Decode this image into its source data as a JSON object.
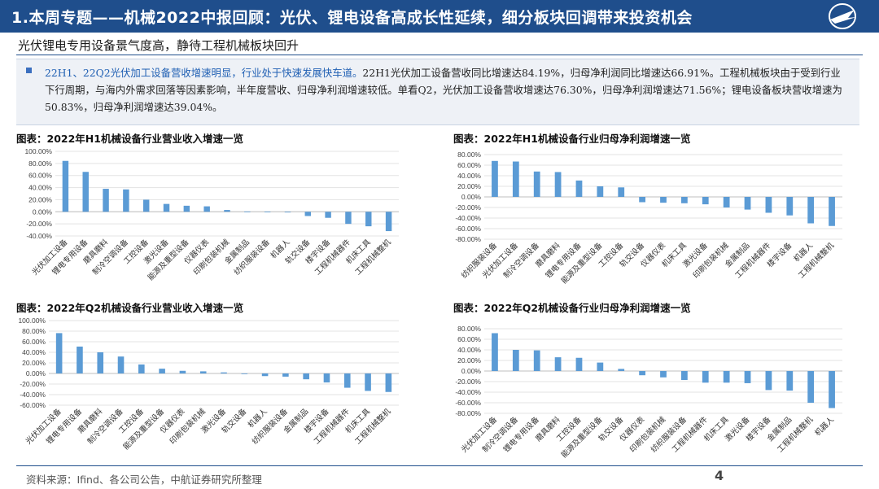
{
  "header": {
    "title": "1.本周专题——机械2022中报回顾：光伏、锂电设备高成长性延续，细分板块回调带来投资机会",
    "subtitle": "光伏锂电专用设备景气度高，静待工程机械板块回升"
  },
  "summary": {
    "highlight": "22H1、22Q2光伏加工设备营收增速明显，行业处于快速发展快车道。",
    "body": "22H1光伏加工设备营收同比增速达84.19%，归母净利润同比增速达66.91%。工程机械板块由于受到行业下行周期，与海内外需求回落等因素影响，半年度营收、归母净利润增速较低。单看Q2，光伏加工设备营收增速达76.30%，归母净利润增速达71.56%；锂电设备板块营收增速为50.83%，归母净利润增速达39.04%。"
  },
  "colors": {
    "bar": "#5b9bd5",
    "brand": "#1f4e8c"
  },
  "charts": {
    "c1": {
      "title": "图表：2022年H1机械设备行业营业收入增速一览"
    },
    "c2": {
      "title": "图表：2022年H1机械设备行业归母净利润增速一览"
    },
    "c3": {
      "title": "图表：2022年Q2机械设备行业营业收入增速一览"
    },
    "c4": {
      "title": "图表：2022年Q2机械设备行业归母净利润增速一览"
    }
  },
  "chart_data": [
    {
      "id": "c1",
      "type": "bar",
      "title": "图表：2022年H1机械设备行业营业收入增速一览",
      "ylim": [
        -40,
        100
      ],
      "yticks": [
        100,
        80,
        60,
        40,
        20,
        0,
        -20,
        -40
      ],
      "categories": [
        "光伏加工设备",
        "锂电专用设备",
        "磨具磨料",
        "制冷空调设备",
        "工控设备",
        "激光设备",
        "能源及重型设备",
        "仪器仪表",
        "印刷包装机械",
        "金属制品",
        "纺织服装设备",
        "机器人",
        "轨交设备",
        "楼宇设备",
        "工程机械器件",
        "机床工具",
        "工程机械整机"
      ],
      "values": [
        84.19,
        66,
        38,
        37,
        20,
        13,
        10,
        9,
        3,
        0.5,
        0.3,
        -1,
        -7,
        -10,
        -20,
        -24,
        -32
      ]
    },
    {
      "id": "c2",
      "type": "bar",
      "title": "图表：2022年H1机械设备行业归母净利润增速一览",
      "ylim": [
        -80,
        80
      ],
      "yticks": [
        80,
        60,
        40,
        20,
        0,
        -20,
        -40,
        -60,
        -80
      ],
      "categories": [
        "纺织服装设备",
        "光伏加工设备",
        "制冷空调设备",
        "磨具磨料",
        "锂电专用设备",
        "能源及重型设备",
        "工控设备",
        "轨交设备",
        "仪器仪表",
        "机床工具",
        "激光设备",
        "印刷包装机械",
        "金属制品",
        "工程机械器件",
        "楼宇设备",
        "机器人",
        "工程机械整机"
      ],
      "values": [
        68,
        66.91,
        48,
        47,
        31,
        20,
        18,
        -10,
        -11,
        -12,
        -14,
        -20,
        -24,
        -30,
        -35,
        -50,
        -55
      ]
    },
    {
      "id": "c3",
      "type": "bar",
      "title": "图表：2022年Q2机械设备行业营业收入增速一览",
      "ylim": [
        -60,
        100
      ],
      "yticks": [
        100,
        80,
        60,
        40,
        20,
        0,
        -20,
        -40,
        -60
      ],
      "categories": [
        "光伏加工设备",
        "锂电专用设备",
        "磨具磨料",
        "制冷空调设备",
        "工控设备",
        "能源及重型设备",
        "仪器仪表",
        "印刷包装机械",
        "激光设备",
        "轨交设备",
        "机器人",
        "纺织服装设备",
        "金属制品",
        "楼宇设备",
        "工程机械器件",
        "机床工具",
        "工程机械整机"
      ],
      "values": [
        76.3,
        50.83,
        40,
        32,
        17,
        9,
        5,
        4,
        2,
        -1,
        -5,
        -6,
        -11,
        -17,
        -27,
        -33,
        -35
      ]
    },
    {
      "id": "c4",
      "type": "bar",
      "title": "图表：2022年Q2机械设备行业归母净利润增速一览",
      "ylim": [
        -80,
        80
      ],
      "yticks": [
        80,
        60,
        40,
        20,
        0,
        -20,
        -40,
        -60,
        -80
      ],
      "categories": [
        "光伏加工设备",
        "制冷空调设备",
        "锂电专用设备",
        "磨具磨料",
        "工控设备",
        "能源及重型设备",
        "轨交设备",
        "仪器仪表",
        "印刷包装机械",
        "纺织服装设备",
        "工程机械器件",
        "机床工具",
        "激光设备",
        "楼宇设备",
        "金属制品",
        "工程机械整机",
        "机器人"
      ],
      "values": [
        71.56,
        40,
        39.04,
        26,
        25,
        16,
        4,
        -8,
        -12,
        -17,
        -22,
        -22,
        -23,
        -36,
        -37,
        -60,
        -70
      ]
    }
  ],
  "footer": {
    "source": "资料来源：Ifind、各公司公告，中航证券研究所整理",
    "page": "4"
  }
}
